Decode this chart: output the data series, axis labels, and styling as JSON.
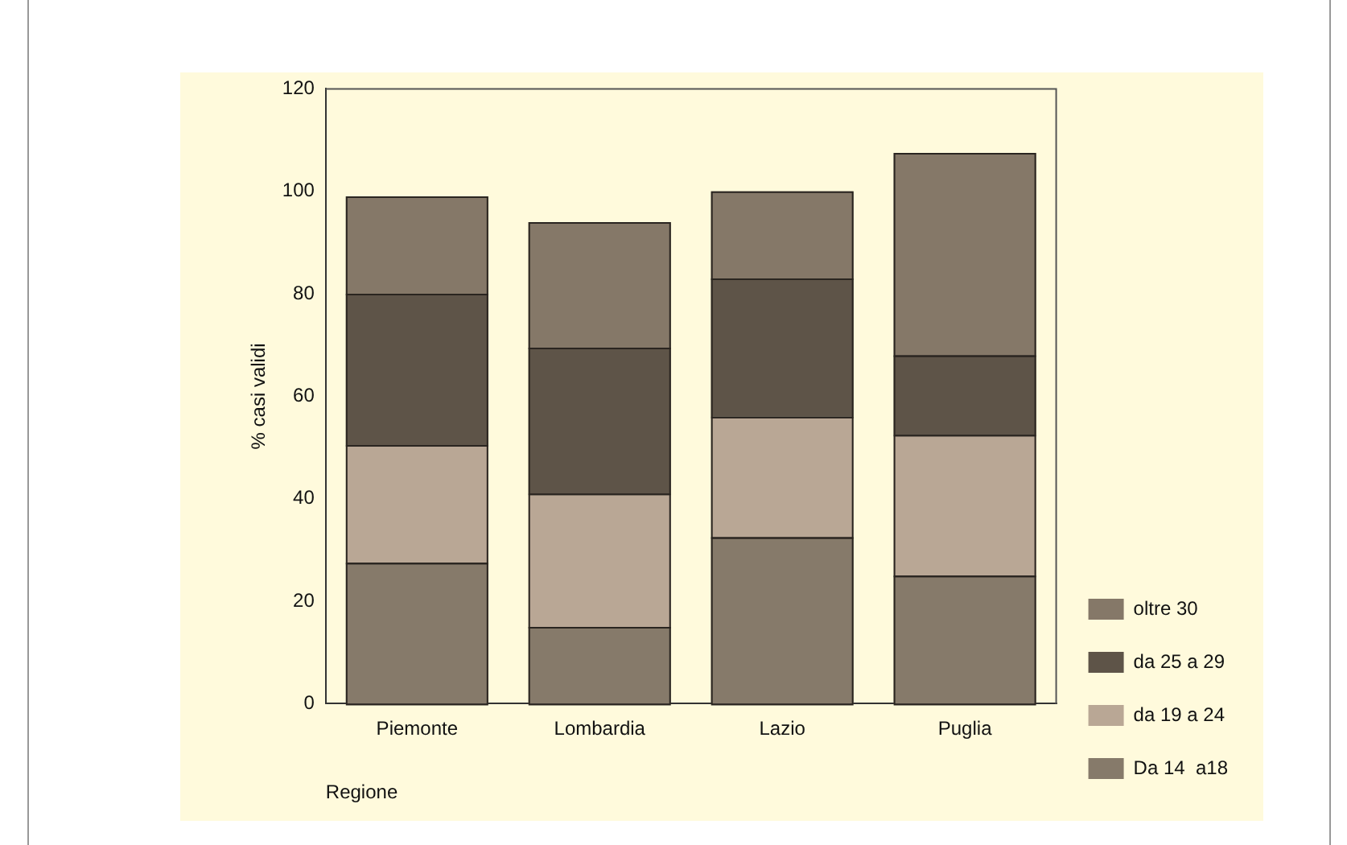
{
  "chart_data": {
    "type": "bar",
    "stacked": true,
    "xlabel": "Regione",
    "ylabel": "% casi validi",
    "categories": [
      "Piemonte",
      "Lombardia",
      "Lazio",
      "Puglia"
    ],
    "series": [
      {
        "name": "Da 14  a18",
        "color": "#867a6a",
        "values": [
          27.5,
          15,
          32.5,
          25
        ]
      },
      {
        "name": "da 19 a 24",
        "color": "#b9a795",
        "values": [
          23,
          26,
          23.5,
          27.5
        ]
      },
      {
        "name": "da 25 a 29",
        "color": "#5e5448",
        "values": [
          29.5,
          28.5,
          27,
          15.5
        ]
      },
      {
        "name": "oltre 30",
        "color": "#857868",
        "values": [
          19,
          24.5,
          17,
          39.5
        ]
      }
    ],
    "ylim": [
      0,
      120
    ],
    "yticks": [
      0,
      20,
      40,
      60,
      80,
      100,
      120
    ],
    "grid": false,
    "legend": "right"
  }
}
